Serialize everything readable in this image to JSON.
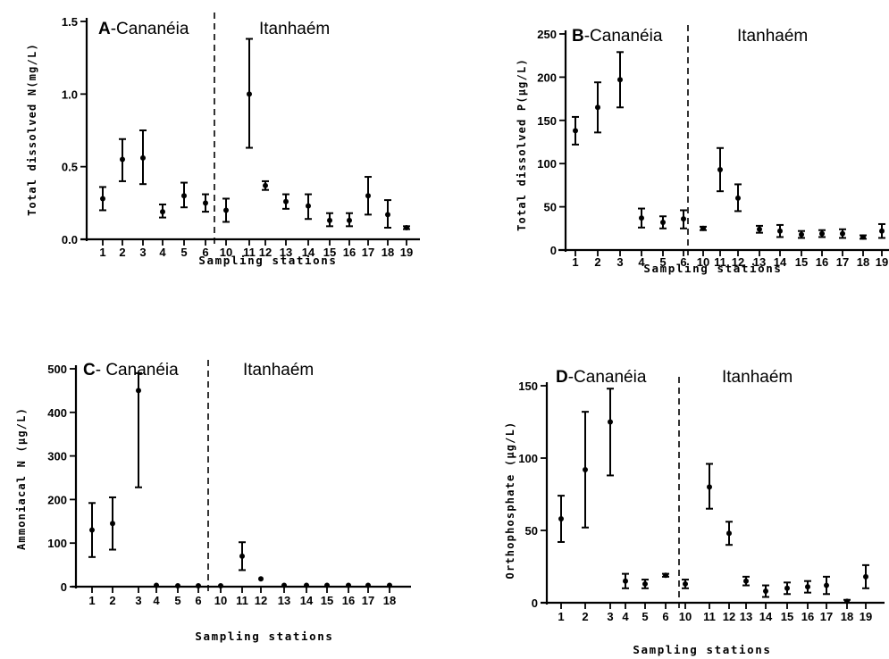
{
  "chart_data": [
    {
      "type": "scatter",
      "panel": "A",
      "region_left": "A-Cananéia",
      "region_right": "Itanhaém",
      "ylabel": "Total dissolved N(mg/L)",
      "xlabel": "Sampling stations",
      "ylim": [
        0,
        1.5
      ],
      "yticks": [
        "0.0",
        "0.5",
        "1.0",
        "1.5"
      ],
      "ytick_values": [
        0,
        0.5,
        1.0,
        1.5
      ],
      "stations": [
        "1",
        "2",
        "3",
        "4",
        "5",
        "6",
        "10",
        "11",
        "12",
        "13",
        "14",
        "15",
        "16",
        "17",
        "18",
        "19"
      ],
      "values": [
        0.28,
        0.55,
        0.56,
        0.19,
        0.3,
        0.25,
        0.2,
        1.0,
        0.37,
        0.26,
        0.23,
        0.13,
        0.13,
        0.3,
        0.17,
        0.08
      ],
      "err_low": [
        0.2,
        0.4,
        0.38,
        0.15,
        0.22,
        0.19,
        0.12,
        0.63,
        0.34,
        0.21,
        0.14,
        0.09,
        0.09,
        0.17,
        0.08,
        0.07
      ],
      "err_high": [
        0.36,
        0.69,
        0.75,
        0.24,
        0.39,
        0.31,
        0.28,
        1.38,
        0.4,
        0.31,
        0.31,
        0.18,
        0.18,
        0.43,
        0.27,
        0.09
      ]
    },
    {
      "type": "scatter",
      "panel": "B",
      "region_left": "B-Cananéia",
      "region_right": "Itanhaém",
      "ylabel": "Total dissolved P(µg/L)",
      "xlabel": "Sampling stations",
      "ylim": [
        0,
        250
      ],
      "yticks": [
        "0",
        "50",
        "100",
        "150",
        "200",
        "250"
      ],
      "ytick_values": [
        0,
        50,
        100,
        150,
        200,
        250
      ],
      "stations": [
        "1",
        "2",
        "3",
        "4",
        "5",
        "6",
        "10",
        "11",
        "12",
        "13",
        "14",
        "15",
        "16",
        "17",
        "18",
        "19"
      ],
      "values": [
        138,
        165,
        197,
        37,
        32,
        36,
        25,
        93,
        60,
        24,
        22,
        18,
        19,
        19,
        15,
        22
      ],
      "err_low": [
        122,
        136,
        165,
        26,
        25,
        25,
        23,
        68,
        45,
        20,
        15,
        14,
        15,
        14,
        13,
        14
      ],
      "err_high": [
        154,
        194,
        229,
        48,
        39,
        46,
        27,
        118,
        76,
        28,
        29,
        22,
        23,
        24,
        17,
        30
      ]
    },
    {
      "type": "scatter",
      "panel": "C",
      "region_left": "C- Cananéia",
      "region_right": "Itanhaém",
      "ylabel": "Ammoniacal N (µg/L)",
      "xlabel": "Sampling stations",
      "ylim": [
        0,
        500
      ],
      "yticks": [
        "0",
        "100",
        "200",
        "300",
        "400",
        "500"
      ],
      "ytick_values": [
        0,
        100,
        200,
        300,
        400,
        500
      ],
      "stations": [
        "1",
        "2",
        "3",
        "4",
        "5",
        "6",
        "10",
        "11",
        "12",
        "13",
        "14",
        "15",
        "16",
        "17",
        "18"
      ],
      "values": [
        130,
        145,
        450,
        3,
        2,
        2,
        2,
        70,
        18,
        3,
        3,
        3,
        3,
        3,
        3
      ],
      "err_low": [
        68,
        85,
        228,
        0,
        0,
        0,
        0,
        38,
        16,
        0,
        0,
        0,
        0,
        0,
        0
      ],
      "err_high": [
        192,
        205,
        490,
        6,
        4,
        4,
        4,
        102,
        20,
        6,
        6,
        6,
        6,
        6,
        6
      ]
    },
    {
      "type": "scatter",
      "panel": "D",
      "region_left": "D-Cananéia",
      "region_right": "Itanhaém",
      "ylabel": "Orthophosphate (µg/L)",
      "xlabel": "Sampling stations",
      "ylim": [
        0,
        150
      ],
      "yticks": [
        "0",
        "50",
        "100",
        "150"
      ],
      "ytick_values": [
        0,
        50,
        100,
        150
      ],
      "stations": [
        "1",
        "2",
        "3",
        "4",
        "5",
        "6",
        "10",
        "11",
        "12",
        "13",
        "14",
        "15",
        "16",
        "17",
        "18",
        "19"
      ],
      "values": [
        58,
        92,
        125,
        15,
        13,
        19,
        13,
        80,
        48,
        15,
        8,
        10,
        11,
        12,
        1,
        18
      ],
      "err_low": [
        42,
        52,
        88,
        10,
        10,
        18,
        10,
        65,
        40,
        12,
        4,
        6,
        7,
        6,
        0,
        10
      ],
      "err_high": [
        74,
        132,
        148,
        20,
        16,
        20,
        16,
        96,
        56,
        18,
        12,
        14,
        15,
        18,
        2,
        26
      ]
    }
  ]
}
